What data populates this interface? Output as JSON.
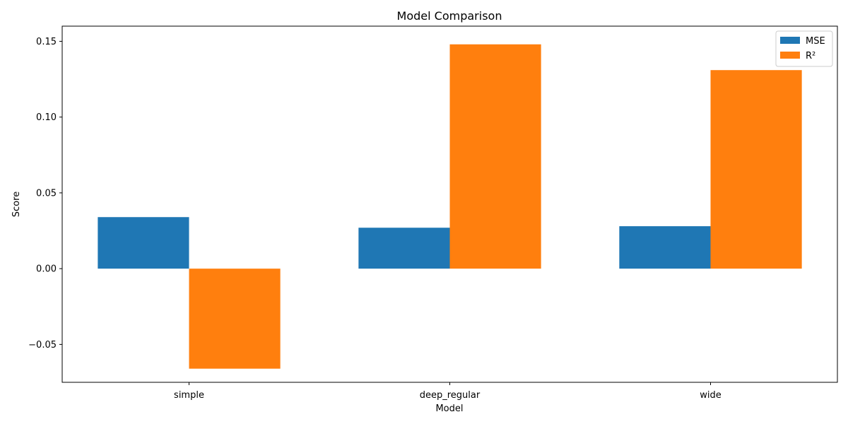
{
  "chart_data": {
    "type": "bar",
    "title": "Model Comparison",
    "xlabel": "Model",
    "ylabel": "Score",
    "categories": [
      "simple",
      "deep_regular",
      "wide"
    ],
    "series": [
      {
        "name": "MSE",
        "color": "#1f77b4",
        "values": [
          0.034,
          0.027,
          0.028
        ]
      },
      {
        "name": "R²",
        "color": "#ff7f0e",
        "values": [
          -0.066,
          0.148,
          0.131
        ]
      }
    ],
    "ylim": [
      -0.075,
      0.16
    ],
    "yticks": [
      -0.05,
      0.0,
      0.05,
      0.1,
      0.15
    ],
    "ytick_labels": [
      "−0.05",
      "0.00",
      "0.05",
      "0.10",
      "0.15"
    ],
    "grid": false,
    "legend_position": "top-right"
  }
}
